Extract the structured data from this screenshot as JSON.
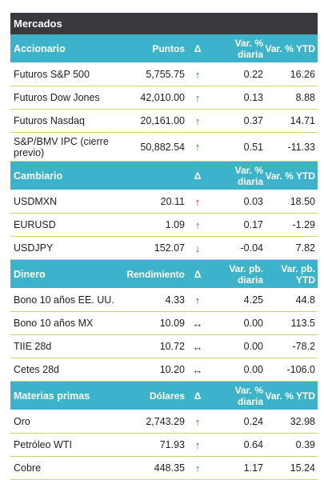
{
  "title": "Mercados",
  "colors": {
    "title_bg": "#393a3e",
    "header_bg": "#3cb3c8",
    "row_rule": "#c8d86a",
    "up_arrow": "#1f8a2a",
    "red_arrow": "#c0141a"
  },
  "sections": [
    {
      "name": "Accionario",
      "value_header": "Puntos",
      "delta_header": "Δ",
      "daily_header": "Var. % diaria",
      "ytd_header": "Var. % YTD",
      "rows": [
        {
          "name": "Futuros S&P 500",
          "value": "5,755.75",
          "arrow": "up-green",
          "daily": "0.22",
          "ytd": "16.26"
        },
        {
          "name": "Futuros Dow Jones",
          "value": "42,010.00",
          "arrow": "up-green",
          "daily": "0.13",
          "ytd": "8.88"
        },
        {
          "name": "Futuros Nasdaq",
          "value": "20,161.00",
          "arrow": "up-green",
          "daily": "0.37",
          "ytd": "14.71"
        },
        {
          "name": "S&P/BMV IPC (cierre previo)",
          "value": "50,882.54",
          "arrow": "up-green",
          "daily": "0.51",
          "ytd": "-11.33"
        }
      ]
    },
    {
      "name": "Cambiario",
      "value_header": "",
      "delta_header": "Δ",
      "daily_header": "Var. % diaria",
      "ytd_header": "Var. % YTD",
      "rows": [
        {
          "name": "USDMXN",
          "value": "20.11",
          "arrow": "up-red",
          "daily": "0.03",
          "ytd": "18.50"
        },
        {
          "name": "EURUSD",
          "value": "1.09",
          "arrow": "up-green",
          "daily": "0.17",
          "ytd": "-1.29"
        },
        {
          "name": "USDJPY",
          "value": "152.07",
          "arrow": "down-green",
          "daily": "-0.04",
          "ytd": "7.82"
        }
      ]
    },
    {
      "name": "Dinero",
      "value_header": "Rendimiento",
      "delta_header": "Δ",
      "daily_header": "Var. pb. diaria",
      "ytd_header": "Var. pb. YTD",
      "rows": [
        {
          "name": "Bono 10 años EE. UU.",
          "value": "4.33",
          "arrow": "up-red",
          "daily": "4.25",
          "ytd": "44.8"
        },
        {
          "name": "Bono 10 años MX",
          "value": "10.09",
          "arrow": "flat",
          "daily": "0.00",
          "ytd": "113.5"
        },
        {
          "name": "TIIE 28d",
          "value": "10.72",
          "arrow": "flat",
          "daily": "0.00",
          "ytd": "-78.2"
        },
        {
          "name": "Cetes 28d",
          "value": "10.20",
          "arrow": "flat",
          "daily": "0.00",
          "ytd": "-106.0"
        }
      ]
    },
    {
      "name": "Materias primas",
      "value_header": "Dólares",
      "delta_header": "Δ",
      "daily_header": "Var. % diaria",
      "ytd_header": "Var. % YTD",
      "rows": [
        {
          "name": "Oro",
          "value": "2,743.29",
          "arrow": "up-green",
          "daily": "0.24",
          "ytd": "32.98"
        },
        {
          "name": "Petróleo WTI",
          "value": "71.93",
          "arrow": "up-green",
          "daily": "0.64",
          "ytd": "0.39"
        },
        {
          "name": "Cobre",
          "value": "448.35",
          "arrow": "up-green",
          "daily": "1.17",
          "ytd": "15.24"
        }
      ]
    }
  ]
}
